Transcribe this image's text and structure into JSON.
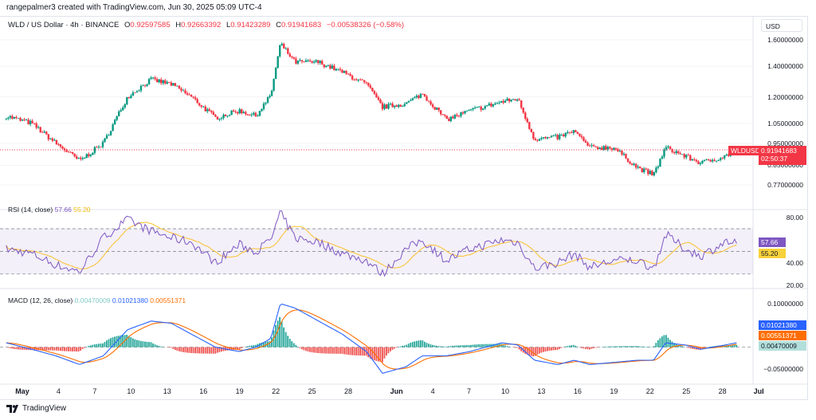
{
  "credit": "rangepalmer3 created with TradingView.com, Jun 30, 2025 05:09 UTC-4",
  "symbol": {
    "name": "WLD / US Dollar · 4h · BINANCE",
    "o_label": "O",
    "o": "0.92597585",
    "h_label": "H",
    "h": "0.92663392",
    "l_label": "L",
    "l": "0.91423289",
    "c_label": "C",
    "c": "0.91941683",
    "change": "−0.00538326 (−0.58%)"
  },
  "currency": "USD",
  "price_axis": {
    "scale": "log",
    "ticks": [
      "1.60000000",
      "1.40000000",
      "1.20000000",
      "1.05000000",
      "0.95000000",
      "0.85000000",
      "0.77000000"
    ]
  },
  "last_price": {
    "ticker": "WLDUSD",
    "value": "0.91941683",
    "countdown": "02:50:37"
  },
  "rsi": {
    "label": "RSI (14, close)",
    "value": "57.66",
    "ma": "55.20",
    "ticks": [
      "80.00",
      "40.00",
      "20.00"
    ],
    "band": [
      30,
      70
    ],
    "mid": 50
  },
  "macd": {
    "label": "MACD (12, 26, close)",
    "hist": "0.00470009",
    "macd": "0.01021380",
    "signal": "0.00551371",
    "ticks": [
      "0.10000000",
      "−0.05000000"
    ]
  },
  "x_axis": [
    "May",
    "4",
    "7",
    "10",
    "13",
    "16",
    "19",
    "22",
    "25",
    "28",
    "Jun",
    "4",
    "7",
    "10",
    "13",
    "16",
    "19",
    "22",
    "25",
    "28",
    "Jul"
  ],
  "colors": {
    "up": "#089981",
    "down": "#f23645",
    "rsi": "#7e57c2",
    "rsi_ma": "#fbc02d",
    "macd": "#2962ff",
    "signal": "#ff6d00",
    "hist_up": "#26a69a",
    "hist_down": "#ef5350"
  },
  "chart_data": {
    "type": "candlestick",
    "interval": "4h",
    "keypoints": [
      [
        "2025-04-29T16:00",
        1.09,
        52,
        0.01
      ],
      [
        "2025-05-01T19:00",
        1.05,
        48,
        -0.005
      ],
      [
        "2025-05-03T19:00",
        0.95,
        38,
        -0.02
      ],
      [
        "2025-05-05T18:00",
        0.87,
        32,
        -0.04
      ],
      [
        "2025-05-07T17:00",
        0.95,
        62,
        -0.02
      ],
      [
        "2025-05-09T17:00",
        1.2,
        78,
        0.04
      ],
      [
        "2025-05-11T16:00",
        1.31,
        68,
        0.06
      ],
      [
        "2025-05-13T08:00",
        1.28,
        62,
        0.055
      ],
      [
        "2025-05-15T00:00",
        1.2,
        58,
        0.03
      ],
      [
        "2025-05-17T00:00",
        1.08,
        40,
        0.0
      ],
      [
        "2025-05-18T23:00",
        1.12,
        56,
        -0.01
      ],
      [
        "2025-05-20T08:00",
        1.09,
        50,
        0.0
      ],
      [
        "2025-05-21T14:00",
        1.21,
        60,
        0.02
      ],
      [
        "2025-05-22T09:00",
        1.57,
        84,
        0.1
      ],
      [
        "2025-05-23T14:00",
        1.43,
        62,
        0.09
      ],
      [
        "2025-05-25T13:00",
        1.43,
        58,
        0.06
      ],
      [
        "2025-05-27T12:00",
        1.36,
        48,
        0.03
      ],
      [
        "2025-05-29T12:00",
        1.28,
        42,
        -0.01
      ],
      [
        "2025-05-30T20:00",
        1.14,
        30,
        -0.06
      ],
      [
        "2025-06-01T19:00",
        1.16,
        52,
        -0.045
      ],
      [
        "2025-06-03T03:00",
        1.22,
        60,
        -0.02
      ],
      [
        "2025-06-05T03:00",
        1.07,
        42,
        -0.02
      ],
      [
        "2025-06-07T02:00",
        1.12,
        52,
        -0.01
      ],
      [
        "2025-06-09T17:00",
        1.17,
        60,
        0.01
      ],
      [
        "2025-06-11T01:00",
        1.19,
        58,
        0.005
      ],
      [
        "2025-06-12T10:00",
        0.97,
        35,
        -0.03
      ],
      [
        "2025-06-14T09:00",
        0.98,
        40,
        -0.04
      ],
      [
        "2025-06-15T17:00",
        1.01,
        48,
        -0.03
      ],
      [
        "2025-06-17T00:00",
        0.93,
        36,
        -0.04
      ],
      [
        "2025-06-19T00:00",
        0.93,
        42,
        -0.035
      ],
      [
        "2025-06-20T23:00",
        0.84,
        42,
        -0.03
      ],
      [
        "2025-06-22T07:00",
        0.81,
        35,
        -0.03
      ],
      [
        "2025-06-23T07:00",
        0.93,
        65,
        0.01
      ],
      [
        "2025-06-24T22:00",
        0.89,
        52,
        0.005
      ],
      [
        "2025-06-26T05:00",
        0.86,
        46,
        -0.005
      ],
      [
        "2025-06-28T05:00",
        0.89,
        58,
        0.005
      ],
      [
        "2025-06-29T05:00",
        0.9194,
        57.66,
        0.0102
      ]
    ],
    "columns": [
      "time",
      "close",
      "rsi",
      "macd"
    ]
  },
  "footer": {
    "brand": "TradingView"
  }
}
